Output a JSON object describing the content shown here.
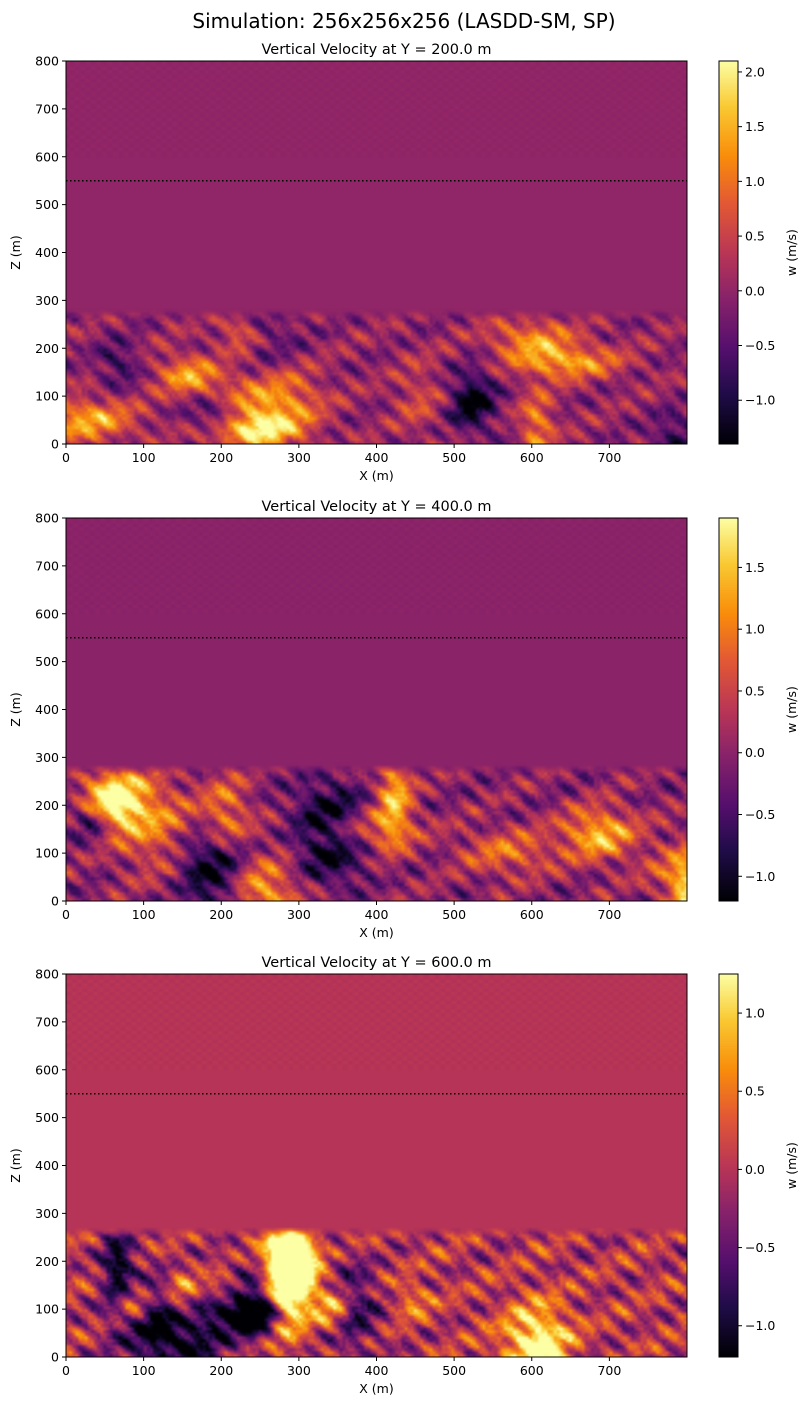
{
  "figure_title": "Simulation: 256x256x256 (LASDD-SM, SP)",
  "chart_data": [
    {
      "type": "heatmap",
      "title": "Vertical Velocity at Y = 200.0 m",
      "xlabel": "X (m)",
      "ylabel": "Z (m)",
      "xlim": [
        0,
        800
      ],
      "ylim": [
        0,
        800
      ],
      "xticks": [
        0,
        100,
        200,
        300,
        400,
        500,
        600,
        700
      ],
      "yticks": [
        0,
        100,
        200,
        300,
        400,
        500,
        600,
        700,
        800
      ],
      "colorbar": {
        "label": "w (m/s)",
        "min": -1.4,
        "max": 2.1,
        "ticks": [
          "−1.0",
          "−0.5",
          "0.0",
          "0.5",
          "1.0",
          "1.5",
          "2.0"
        ],
        "tick_values": [
          -1.0,
          -0.5,
          0.0,
          0.5,
          1.0,
          1.5,
          2.0
        ],
        "colormap": "inferno"
      },
      "reference_line": {
        "z": 550,
        "style": "dotted",
        "color": "#000000"
      },
      "background_w": 0.0,
      "boundary_layer_top_z": 260,
      "seed": 11
    },
    {
      "type": "heatmap",
      "title": "Vertical Velocity at Y = 400.0 m",
      "xlabel": "X (m)",
      "ylabel": "Z (m)",
      "xlim": [
        0,
        800
      ],
      "ylim": [
        0,
        800
      ],
      "xticks": [
        0,
        100,
        200,
        300,
        400,
        500,
        600,
        700
      ],
      "yticks": [
        0,
        100,
        200,
        300,
        400,
        500,
        600,
        700,
        800
      ],
      "colorbar": {
        "label": "w (m/s)",
        "min": -1.2,
        "max": 1.9,
        "ticks": [
          "−1.0",
          "−0.5",
          "0.0",
          "0.5",
          "1.0",
          "1.5"
        ],
        "tick_values": [
          -1.0,
          -0.5,
          0.0,
          0.5,
          1.0,
          1.5
        ],
        "colormap": "inferno"
      },
      "reference_line": {
        "z": 550,
        "style": "dotted",
        "color": "#000000"
      },
      "background_w": 0.0,
      "boundary_layer_top_z": 265,
      "seed": 23
    },
    {
      "type": "heatmap",
      "title": "Vertical Velocity at Y = 600.0 m",
      "xlabel": "X (m)",
      "ylabel": "Z (m)",
      "xlim": [
        0,
        800
      ],
      "ylim": [
        0,
        800
      ],
      "xticks": [
        0,
        100,
        200,
        300,
        400,
        500,
        600,
        700
      ],
      "yticks": [
        0,
        100,
        200,
        300,
        400,
        500,
        600,
        700,
        800
      ],
      "colorbar": {
        "label": "w (m/s)",
        "min": -1.2,
        "max": 1.25,
        "ticks": [
          "−1.0",
          "−0.5",
          "0.0",
          "0.5",
          "1.0"
        ],
        "tick_values": [
          -1.0,
          -0.5,
          0.0,
          0.5,
          1.0
        ],
        "colormap": "inferno"
      },
      "reference_line": {
        "z": 550,
        "style": "dotted",
        "color": "#000000"
      },
      "background_w": 0.0,
      "boundary_layer_top_z": 250,
      "seed": 37
    }
  ]
}
